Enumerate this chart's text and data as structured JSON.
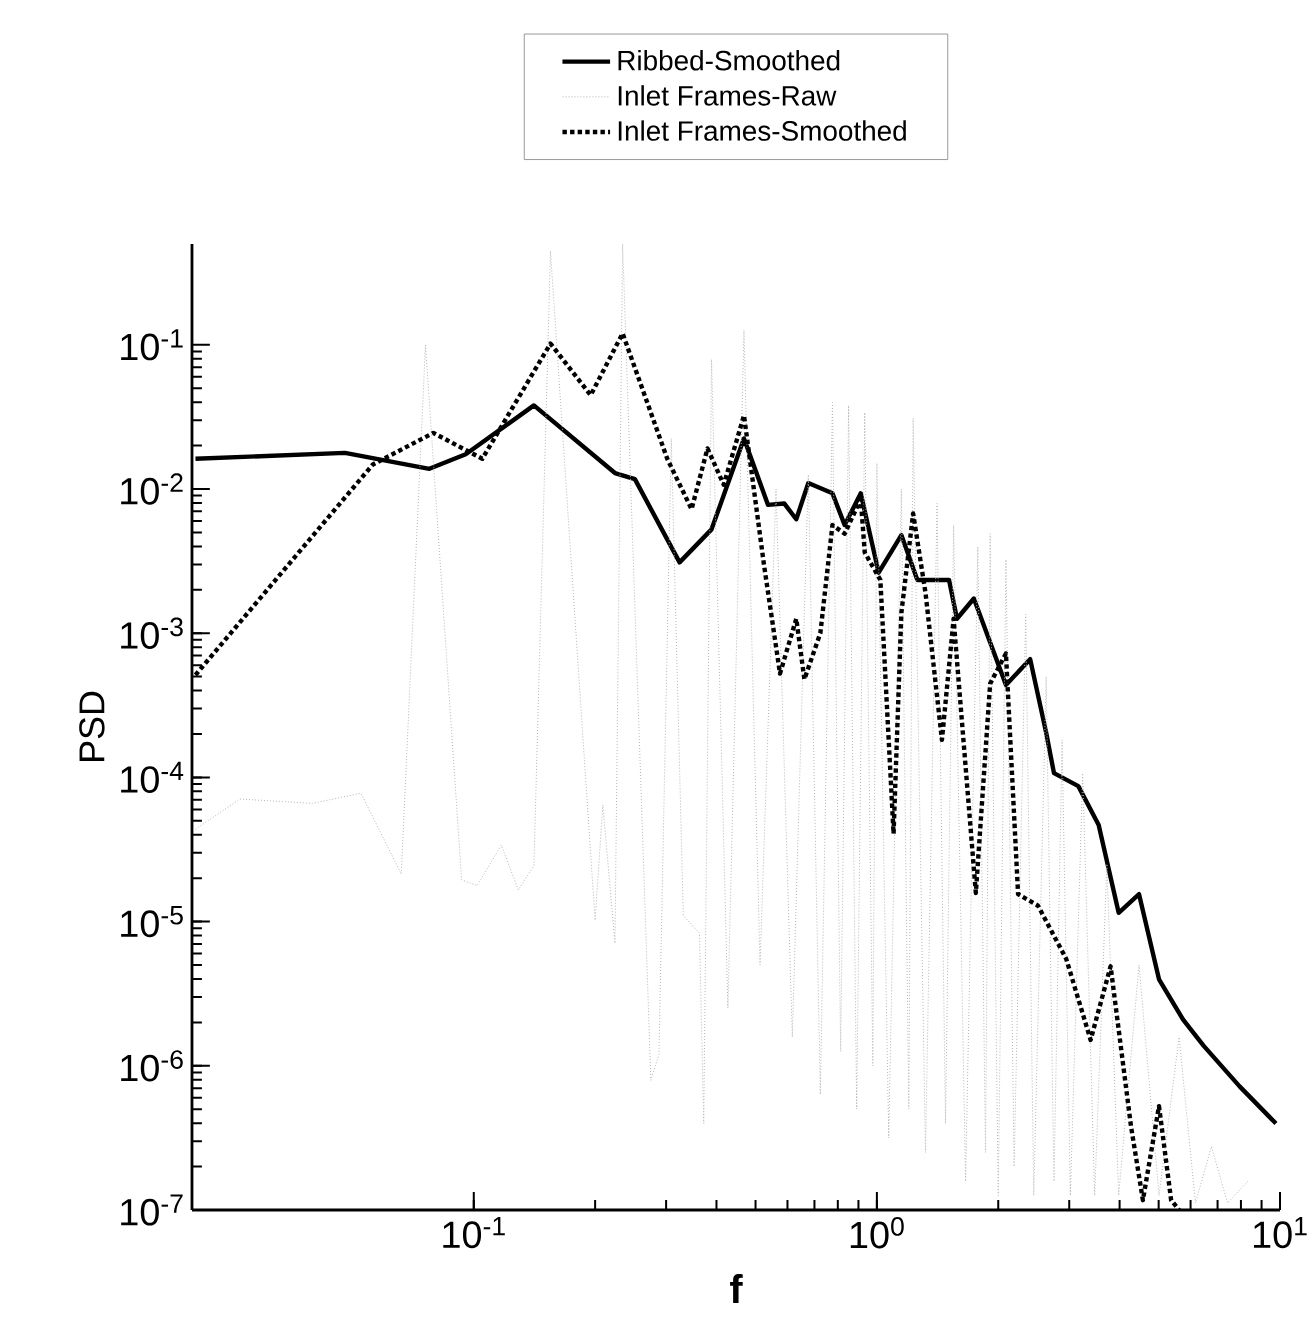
{
  "chart_data": {
    "type": "line",
    "xlabel": "f",
    "ylabel": "PSD",
    "log": "xy",
    "legend": "top",
    "grid": false,
    "xlim": [
      0.02,
      10
    ],
    "ylim": [
      1e-07,
      0.5
    ],
    "xticks": [
      {
        "value": 0.1,
        "label": "10$^{-1}$"
      },
      {
        "value": 1,
        "label": "10$^{0}$"
      },
      {
        "value": 10,
        "label": "10$^{1}$"
      }
    ],
    "yticks": [
      {
        "value": 1e-07,
        "label": "10$^{-7}$"
      },
      {
        "value": 1e-06,
        "label": "10$^{-6}$"
      },
      {
        "value": 1e-05,
        "label": "10$^{-5}$"
      },
      {
        "value": 0.0001,
        "label": "10$^{-4}$"
      },
      {
        "value": 0.001,
        "label": "10$^{-3}$"
      },
      {
        "value": 0.01,
        "label": "10$^{-2}$"
      },
      {
        "value": 0.1,
        "label": "10$^{-1}$"
      }
    ],
    "series": [
      {
        "name": "Ribbed-Smoothed",
        "color": "#000000",
        "line_style": "solid",
        "x": [
          0.0204,
          0.0479,
          0.0776,
          0.0955,
          0.141,
          0.224,
          0.251,
          0.324,
          0.389,
          0.468,
          0.537,
          0.589,
          0.631,
          0.676,
          0.776,
          0.832,
          0.912,
          1.01,
          1.15,
          1.26,
          1.51,
          1.58,
          1.74,
          2.09,
          2.4,
          2.63,
          2.75,
          3.16,
          3.55,
          3.98,
          4.47,
          5.01,
          5.75,
          6.46,
          7.94,
          9.77
        ],
        "values": [
          0.0162,
          0.0178,
          0.0138,
          0.0174,
          0.038,
          0.0129,
          0.0117,
          0.0031,
          0.00525,
          0.0224,
          0.00776,
          0.00794,
          0.00617,
          0.011,
          0.00933,
          0.00562,
          0.00933,
          0.00263,
          0.00479,
          0.00234,
          0.00234,
          0.00126,
          0.00174,
          0.000437,
          0.000661,
          0.000204,
          0.000107,
          8.7e-05,
          4.68e-05,
          1.15e-05,
          1.55e-05,
          3.98e-06,
          2.09e-06,
          1.38e-06,
          7.2e-07,
          3.98e-07
        ]
      },
      {
        "name": "Inlet Frames-Raw",
        "color": "#b4b4b4",
        "line_style": "dotted",
        "x": [
          0.0204,
          0.0263,
          0.0398,
          0.0525,
          0.0661,
          0.0759,
          0.0933,
          0.102,
          0.117,
          0.129,
          0.141,
          0.155,
          0.2,
          0.209,
          0.224,
          0.234,
          0.275,
          0.288,
          0.309,
          0.331,
          0.363,
          0.372,
          0.389,
          0.427,
          0.468,
          0.513,
          0.562,
          0.617,
          0.676,
          0.724,
          0.776,
          0.813,
          0.851,
          0.891,
          0.933,
          0.977,
          1.0,
          1.07,
          1.15,
          1.2,
          1.23,
          1.32,
          1.41,
          1.48,
          1.55,
          1.66,
          1.78,
          1.86,
          1.91,
          2.0,
          2.09,
          2.19,
          2.34,
          2.45,
          2.63,
          2.75,
          2.88,
          3.02,
          3.24,
          3.47,
          3.72,
          3.98,
          4.47,
          5.01,
          5.62,
          6.17,
          6.76,
          7.41,
          8.32
        ],
        "values": [
          4.37e-05,
          7.08e-05,
          6.61e-05,
          7.76e-05,
          2.14e-05,
          0.1,
          1.95e-05,
          1.78e-05,
          3.39e-05,
          1.66e-05,
          2.45e-05,
          0.447,
          1.02e-05,
          6.46e-05,
          7.08e-06,
          0.5,
          7.94e-07,
          1.2e-06,
          0.0224,
          1.1e-05,
          8.32e-06,
          3.98e-07,
          0.0794,
          2.51e-06,
          0.126,
          5.01e-06,
          0.01,
          1.58e-06,
          0.0126,
          6.31e-07,
          0.0398,
          1.26e-06,
          0.038,
          5.01e-07,
          0.0339,
          1e-06,
          0.0151,
          3.16e-07,
          0.01,
          5.01e-07,
          0.0309,
          2.51e-07,
          0.00794,
          3.98e-07,
          0.00562,
          1.58e-07,
          0.00398,
          2.51e-07,
          0.0049,
          1.26e-07,
          0.00324,
          2e-07,
          0.00135,
          1.26e-07,
          0.000501,
          1.58e-07,
          0.000182,
          1.26e-07,
          0.000107,
          1.26e-07,
          2.51e-05,
          1.26e-07,
          5.01e-06,
          1.26e-07,
          1.58e-06,
          1.12e-07,
          2.75e-07,
          1.12e-07,
          1.58e-07
        ]
      },
      {
        "name": "Inlet Frames-Smoothed",
        "color": "#000000",
        "line_style": "dotted",
        "x": [
          0.0204,
          0.0562,
          0.0794,
          0.105,
          0.155,
          0.195,
          0.234,
          0.302,
          0.347,
          0.38,
          0.417,
          0.468,
          0.525,
          0.575,
          0.631,
          0.661,
          0.724,
          0.776,
          0.832,
          0.912,
          0.933,
          1.02,
          1.1,
          1.15,
          1.23,
          1.32,
          1.45,
          1.55,
          1.76,
          1.91,
          2.09,
          2.24,
          2.51,
          2.95,
          3.39,
          3.8,
          4.27,
          4.57,
          5.01,
          5.37,
          5.62
        ],
        "values": [
          0.000513,
          0.0148,
          0.0245,
          0.0162,
          0.102,
          0.0447,
          0.12,
          0.0162,
          0.00724,
          0.0191,
          0.0107,
          0.0324,
          0.00295,
          0.000525,
          0.00126,
          0.000479,
          0.001,
          0.00562,
          0.0049,
          0.00851,
          0.00363,
          0.00234,
          4.07e-05,
          0.00138,
          0.00676,
          0.00191,
          0.000182,
          0.00126,
          1.58e-05,
          0.000447,
          0.000724,
          1.55e-05,
          1.29e-05,
          5.5e-06,
          1.51e-06,
          4.9e-06,
          3.8e-07,
          1.17e-07,
          5.25e-07,
          1.17e-07,
          1e-07
        ]
      }
    ]
  }
}
